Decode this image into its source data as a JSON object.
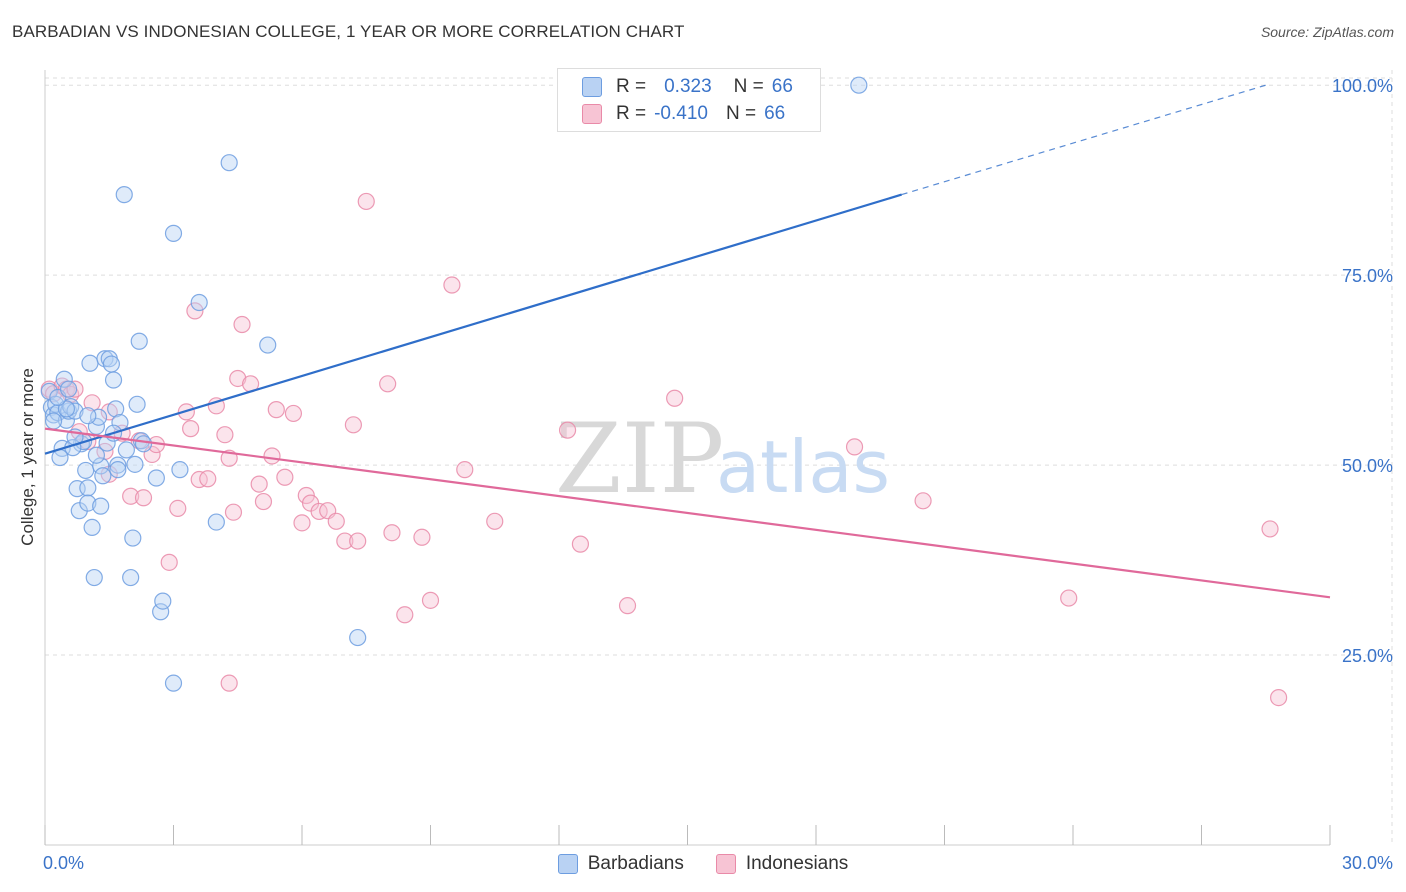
{
  "title": "BARBADIAN VS INDONESIAN COLLEGE, 1 YEAR OR MORE CORRELATION CHART",
  "source": "Source: ZipAtlas.com",
  "watermark": {
    "zip": "ZIP",
    "atlas": "atlas"
  },
  "colors": {
    "blue": "#6d9de0",
    "blue_fill": "#b9d2f3",
    "blue_line": "#2f6ec9",
    "pink": "#e98aa8",
    "pink_fill": "#f7c4d4",
    "pink_line": "#e0699a",
    "grid": "#dddddd",
    "axis_text": "#3a73c8"
  },
  "legend": {
    "series": [
      {
        "r_label": "R =",
        "r_value": "0.323",
        "n_label": "N =",
        "n_value": "66"
      },
      {
        "r_label": "R =",
        "r_value": "-0.410",
        "n_label": "N =",
        "n_value": "66"
      }
    ]
  },
  "chart_data": {
    "type": "scatter",
    "title": "BARBADIAN VS INDONESIAN COLLEGE, 1 YEAR OR MORE CORRELATION CHART",
    "xlabel": "",
    "ylabel": "College, 1 year or more",
    "xlim": [
      0,
      30
    ],
    "ylim": [
      0,
      102
    ],
    "x_tick_labels": [
      "0.0%",
      "30.0%"
    ],
    "y_tick_labels": [
      "25.0%",
      "50.0%",
      "75.0%",
      "100.0%"
    ],
    "y_ticks": [
      25,
      50,
      75,
      100
    ],
    "x_minor_ticks": [
      0,
      3,
      6,
      9,
      12,
      15,
      18,
      21,
      24,
      27,
      30
    ],
    "series": [
      {
        "name": "Barbadians",
        "color": "#6d9de0",
        "points": [
          [
            0.1,
            59.7
          ],
          [
            0.15,
            57.6
          ],
          [
            0.2,
            56.6
          ],
          [
            0.25,
            58.0
          ],
          [
            0.3,
            56.9
          ],
          [
            0.4,
            52.2
          ],
          [
            0.35,
            51.0
          ],
          [
            0.5,
            55.9
          ],
          [
            0.45,
            61.3
          ],
          [
            0.55,
            57.1
          ],
          [
            0.6,
            57.7
          ],
          [
            0.7,
            57.1
          ],
          [
            0.75,
            46.9
          ],
          [
            0.8,
            44.0
          ],
          [
            0.85,
            52.8
          ],
          [
            0.9,
            53.1
          ],
          [
            0.95,
            49.3
          ],
          [
            1.0,
            47.0
          ],
          [
            1.0,
            45.0
          ],
          [
            1.05,
            63.4
          ],
          [
            1.1,
            41.8
          ],
          [
            1.15,
            35.2
          ],
          [
            1.2,
            55.1
          ],
          [
            1.25,
            56.3
          ],
          [
            1.3,
            49.9
          ],
          [
            1.3,
            44.6
          ],
          [
            1.35,
            48.6
          ],
          [
            1.4,
            64.0
          ],
          [
            1.45,
            52.9
          ],
          [
            1.5,
            64.0
          ],
          [
            1.55,
            63.3
          ],
          [
            1.6,
            61.2
          ],
          [
            1.65,
            57.4
          ],
          [
            1.7,
            50.0
          ],
          [
            1.7,
            49.4
          ],
          [
            1.75,
            55.6
          ],
          [
            1.85,
            85.6
          ],
          [
            1.9,
            52.0
          ],
          [
            2.0,
            35.2
          ],
          [
            2.05,
            40.4
          ],
          [
            2.15,
            58.0
          ],
          [
            2.2,
            66.3
          ],
          [
            2.25,
            53.2
          ],
          [
            2.3,
            52.8
          ],
          [
            2.6,
            48.3
          ],
          [
            2.7,
            30.7
          ],
          [
            2.75,
            32.1
          ],
          [
            3.0,
            80.5
          ],
          [
            3.0,
            21.3
          ],
          [
            3.15,
            49.4
          ],
          [
            3.6,
            71.4
          ],
          [
            4.0,
            42.5
          ],
          [
            4.3,
            89.8
          ],
          [
            5.2,
            65.8
          ],
          [
            7.3,
            27.3
          ],
          [
            19.0,
            100.0
          ],
          [
            0.2,
            55.8
          ],
          [
            0.5,
            57.4
          ],
          [
            0.65,
            52.3
          ],
          [
            0.7,
            53.7
          ],
          [
            1.0,
            56.5
          ],
          [
            1.2,
            51.3
          ],
          [
            0.3,
            58.9
          ],
          [
            0.55,
            60.0
          ],
          [
            1.6,
            54.2
          ],
          [
            2.1,
            50.1
          ]
        ]
      },
      {
        "name": "Indonesians",
        "color": "#e98aa8",
        "points": [
          [
            0.1,
            60.0
          ],
          [
            0.2,
            59.4
          ],
          [
            0.4,
            60.4
          ],
          [
            0.5,
            60.0
          ],
          [
            0.6,
            59.3
          ],
          [
            0.7,
            60.0
          ],
          [
            0.8,
            54.4
          ],
          [
            1.0,
            53.1
          ],
          [
            1.1,
            58.2
          ],
          [
            1.4,
            51.8
          ],
          [
            1.5,
            48.8
          ],
          [
            1.5,
            57.0
          ],
          [
            1.8,
            54.2
          ],
          [
            2.0,
            45.9
          ],
          [
            2.2,
            53.2
          ],
          [
            2.3,
            45.7
          ],
          [
            2.5,
            51.4
          ],
          [
            2.6,
            52.7
          ],
          [
            2.9,
            37.2
          ],
          [
            3.1,
            44.3
          ],
          [
            3.3,
            57.0
          ],
          [
            3.4,
            54.8
          ],
          [
            3.5,
            70.3
          ],
          [
            3.6,
            48.1
          ],
          [
            3.8,
            48.2
          ],
          [
            4.0,
            57.8
          ],
          [
            4.2,
            54.0
          ],
          [
            4.3,
            50.9
          ],
          [
            4.4,
            43.8
          ],
          [
            4.5,
            61.4
          ],
          [
            4.6,
            68.5
          ],
          [
            4.8,
            60.7
          ],
          [
            5.0,
            47.5
          ],
          [
            5.1,
            45.2
          ],
          [
            5.3,
            51.2
          ],
          [
            5.4,
            57.3
          ],
          [
            5.6,
            48.4
          ],
          [
            5.8,
            56.8
          ],
          [
            6.0,
            42.4
          ],
          [
            6.1,
            46.0
          ],
          [
            6.2,
            45.0
          ],
          [
            6.4,
            43.9
          ],
          [
            6.6,
            44.0
          ],
          [
            6.8,
            42.6
          ],
          [
            7.0,
            40.0
          ],
          [
            7.2,
            55.3
          ],
          [
            7.3,
            40.0
          ],
          [
            7.5,
            84.7
          ],
          [
            8.0,
            60.7
          ],
          [
            8.1,
            41.1
          ],
          [
            8.4,
            30.3
          ],
          [
            8.8,
            40.5
          ],
          [
            9.0,
            32.2
          ],
          [
            9.5,
            73.7
          ],
          [
            9.8,
            49.4
          ],
          [
            10.5,
            42.6
          ],
          [
            12.2,
            54.6
          ],
          [
            12.5,
            39.6
          ],
          [
            13.6,
            31.5
          ],
          [
            14.7,
            58.8
          ],
          [
            18.9,
            52.4
          ],
          [
            20.5,
            45.3
          ],
          [
            23.9,
            32.5
          ],
          [
            28.6,
            41.6
          ],
          [
            28.8,
            19.4
          ],
          [
            4.3,
            21.3
          ]
        ]
      }
    ],
    "trend_lines": [
      {
        "series": "Barbadians",
        "x0": 0,
        "y0": 51.5,
        "x1": 20,
        "y1": 85.6,
        "dashed_to_x": 28.5,
        "dashed_to_y": 100.0
      },
      {
        "series": "Indonesians",
        "x0": 0,
        "y0": 54.8,
        "x1": 30,
        "y1": 32.6
      }
    ],
    "legend_position": "top-center"
  }
}
